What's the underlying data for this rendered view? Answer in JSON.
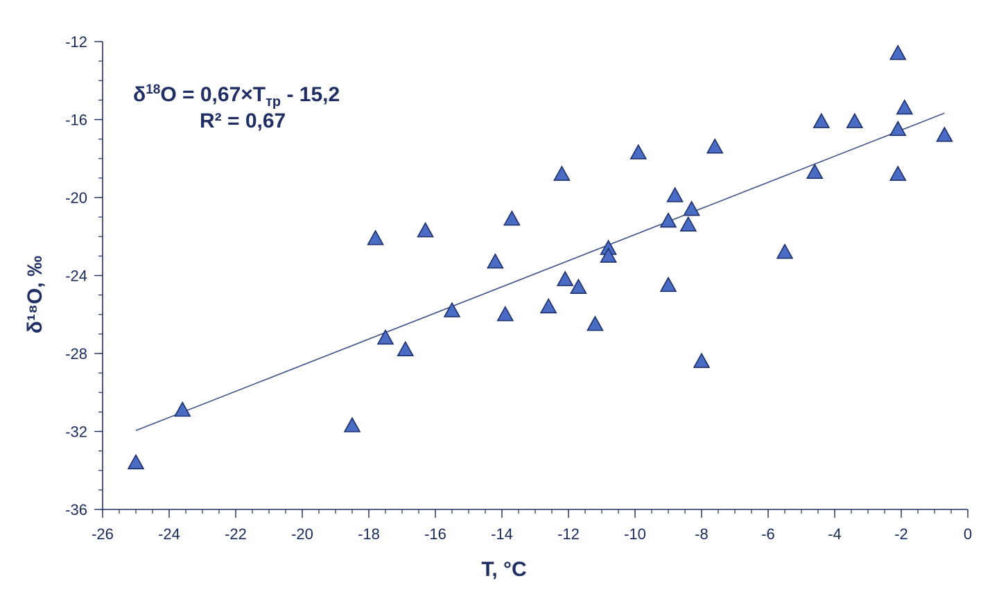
{
  "chart_data": {
    "type": "scatter",
    "xlabel": "T, °C",
    "ylabel": "δ¹⁸O, ‰",
    "xlim": [
      -26,
      0
    ],
    "ylim": [
      -36,
      -12
    ],
    "x_ticks": [
      -26,
      -24,
      -22,
      -20,
      -18,
      -16,
      -14,
      -12,
      -10,
      -8,
      -6,
      -4,
      -2,
      0
    ],
    "y_ticks": [
      -12,
      -16,
      -20,
      -24,
      -28,
      -32,
      -36
    ],
    "marker": "triangle",
    "marker_color": "#4a6cc4",
    "grid": false,
    "equation": {
      "prefix": "δ",
      "sup": "18",
      "body": "O = 0,67×T",
      "sub": "тр",
      "suffix": " - 15,2",
      "r2": "R² = 0,67"
    },
    "trendline": {
      "slope": 0.67,
      "intercept": -15.2,
      "x_range": [
        -25,
        -0.7
      ]
    },
    "series": [
      {
        "points": [
          {
            "x": -25.0,
            "y": -33.6
          },
          {
            "x": -23.6,
            "y": -30.9
          },
          {
            "x": -18.5,
            "y": -31.7
          },
          {
            "x": -17.8,
            "y": -22.1
          },
          {
            "x": -17.5,
            "y": -27.2
          },
          {
            "x": -16.9,
            "y": -27.8
          },
          {
            "x": -16.3,
            "y": -21.7
          },
          {
            "x": -15.5,
            "y": -25.8
          },
          {
            "x": -14.2,
            "y": -23.3
          },
          {
            "x": -13.9,
            "y": -26.0
          },
          {
            "x": -13.7,
            "y": -21.1
          },
          {
            "x": -12.6,
            "y": -25.6
          },
          {
            "x": -12.2,
            "y": -18.8
          },
          {
            "x": -12.1,
            "y": -24.2
          },
          {
            "x": -11.7,
            "y": -24.6
          },
          {
            "x": -11.2,
            "y": -26.5
          },
          {
            "x": -10.8,
            "y": -22.6
          },
          {
            "x": -10.8,
            "y": -23.0
          },
          {
            "x": -9.9,
            "y": -17.7
          },
          {
            "x": -9.0,
            "y": -24.5
          },
          {
            "x": -9.0,
            "y": -21.2
          },
          {
            "x": -8.8,
            "y": -19.9
          },
          {
            "x": -8.4,
            "y": -21.4
          },
          {
            "x": -8.3,
            "y": -20.6
          },
          {
            "x": -8.0,
            "y": -28.4
          },
          {
            "x": -7.6,
            "y": -17.4
          },
          {
            "x": -5.5,
            "y": -22.8
          },
          {
            "x": -4.6,
            "y": -18.7
          },
          {
            "x": -4.4,
            "y": -16.1
          },
          {
            "x": -3.4,
            "y": -16.1
          },
          {
            "x": -2.1,
            "y": -12.6
          },
          {
            "x": -2.1,
            "y": -16.5
          },
          {
            "x": -2.1,
            "y": -18.8
          },
          {
            "x": -1.9,
            "y": -15.4
          },
          {
            "x": -0.7,
            "y": -16.8
          }
        ]
      }
    ]
  }
}
